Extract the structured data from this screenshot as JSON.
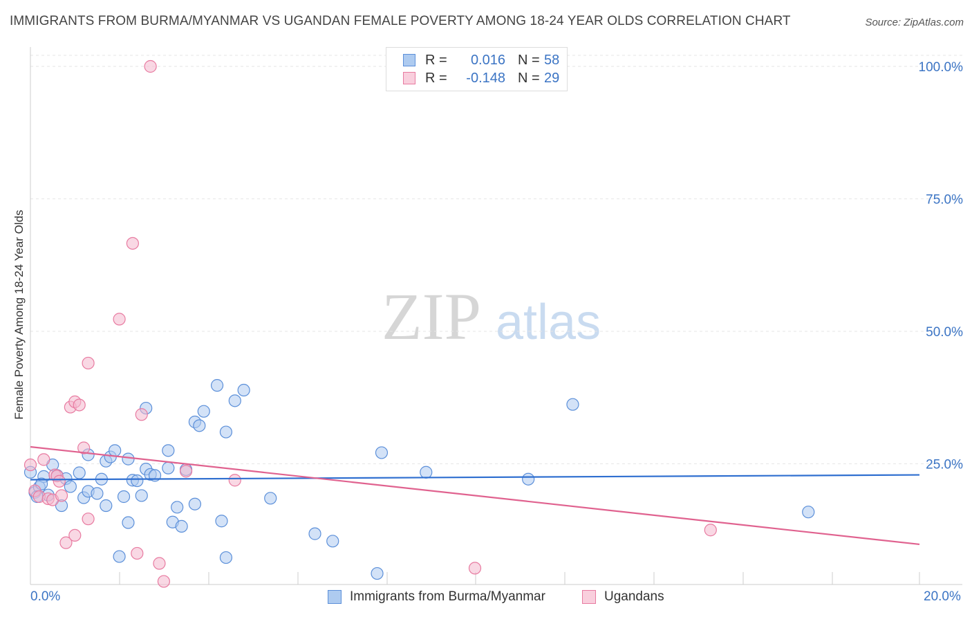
{
  "header": {
    "title": "IMMIGRANTS FROM BURMA/MYANMAR VS UGANDAN FEMALE POVERTY AMONG 18-24 YEAR OLDS CORRELATION CHART",
    "source": "Source: ZipAtlas.com"
  },
  "watermark": {
    "zip": "ZIP",
    "atlas": "atlas"
  },
  "legend": {
    "rows": [
      {
        "r_label": "R =",
        "r_value": "0.016",
        "n_label": "N =",
        "n_value": "58",
        "color": "#5b8fd9"
      },
      {
        "r_label": "R =",
        "r_value": "-0.148",
        "n_label": "N =",
        "n_value": "29",
        "color": "#e87aa0"
      }
    ]
  },
  "chart_data": {
    "type": "scatter",
    "title": "IMMIGRANTS FROM BURMA/MYANMAR VS UGANDAN FEMALE POVERTY AMONG 18-24 YEAR OLDS CORRELATION CHART",
    "xlabel": "",
    "ylabel": "Female Poverty Among 18-24 Year Olds",
    "xlim": [
      0,
      20
    ],
    "ylim": [
      0,
      100
    ],
    "x_tick_labels": {
      "min": "0.0%",
      "max": "20.0%"
    },
    "y_ticks": [
      {
        "value": 100,
        "label": "100.0%"
      },
      {
        "value": 75,
        "label": "75.0%"
      },
      {
        "value": 50,
        "label": "50.0%"
      },
      {
        "value": 25,
        "label": "25.0%"
      }
    ],
    "grid": true,
    "series": [
      {
        "name": "Immigrants from Burma/Myanmar",
        "color": "#5b8fd9",
        "fill": "#aecbf0",
        "trend": {
          "x0": 0,
          "y0": 22.0,
          "x1": 20,
          "y1": 22.9
        },
        "points": [
          [
            0.1,
            19.6
          ],
          [
            0.2,
            20.6
          ],
          [
            0.3,
            22.6
          ],
          [
            0.5,
            24.8
          ],
          [
            0.6,
            22.8
          ],
          [
            0.4,
            19.1
          ],
          [
            0.7,
            17.1
          ],
          [
            0.8,
            22.2
          ],
          [
            0.9,
            20.7
          ],
          [
            1.1,
            23.3
          ],
          [
            1.2,
            18.6
          ],
          [
            1.3,
            19.8
          ],
          [
            1.3,
            26.7
          ],
          [
            1.5,
            19.4
          ],
          [
            1.6,
            22.1
          ],
          [
            1.7,
            25.5
          ],
          [
            1.7,
            17.1
          ],
          [
            1.8,
            26.3
          ],
          [
            1.9,
            27.5
          ],
          [
            2.0,
            7.5
          ],
          [
            2.1,
            18.8
          ],
          [
            2.2,
            25.9
          ],
          [
            2.2,
            13.9
          ],
          [
            2.3,
            21.9
          ],
          [
            2.4,
            21.8
          ],
          [
            2.5,
            19.0
          ],
          [
            2.6,
            35.5
          ],
          [
            2.6,
            24.0
          ],
          [
            2.7,
            23.0
          ],
          [
            2.8,
            22.8
          ],
          [
            3.1,
            24.2
          ],
          [
            3.1,
            27.5
          ],
          [
            3.3,
            16.8
          ],
          [
            3.2,
            14.0
          ],
          [
            3.4,
            13.2
          ],
          [
            3.5,
            23.9
          ],
          [
            3.7,
            17.4
          ],
          [
            3.7,
            32.9
          ],
          [
            3.8,
            32.2
          ],
          [
            3.9,
            34.9
          ],
          [
            4.2,
            39.8
          ],
          [
            4.3,
            14.2
          ],
          [
            4.4,
            31.0
          ],
          [
            4.4,
            7.3
          ],
          [
            4.6,
            36.9
          ],
          [
            4.8,
            38.9
          ],
          [
            5.4,
            18.5
          ],
          [
            6.4,
            11.8
          ],
          [
            6.8,
            10.4
          ],
          [
            7.8,
            4.3
          ],
          [
            7.9,
            27.1
          ],
          [
            8.9,
            23.4
          ],
          [
            11.2,
            22.1
          ],
          [
            12.2,
            36.2
          ],
          [
            17.5,
            15.9
          ],
          [
            0.0,
            23.4
          ],
          [
            0.15,
            18.8
          ],
          [
            0.25,
            21.2
          ]
        ]
      },
      {
        "name": "Ugandans",
        "color": "#e87aa0",
        "fill": "#f4b8cd",
        "trend": {
          "x0": 0,
          "y0": 28.2,
          "x1": 20,
          "y1": 9.8
        },
        "points": [
          [
            0.0,
            24.8
          ],
          [
            0.1,
            19.9
          ],
          [
            0.2,
            18.8
          ],
          [
            0.3,
            25.8
          ],
          [
            0.4,
            18.4
          ],
          [
            0.5,
            18.2
          ],
          [
            0.55,
            22.9
          ],
          [
            0.6,
            22.7
          ],
          [
            0.65,
            21.7
          ],
          [
            0.7,
            19.0
          ],
          [
            0.8,
            10.1
          ],
          [
            0.9,
            35.7
          ],
          [
            1.0,
            36.7
          ],
          [
            1.0,
            11.5
          ],
          [
            1.1,
            36.1
          ],
          [
            1.2,
            28.0
          ],
          [
            1.3,
            44.0
          ],
          [
            1.3,
            14.6
          ],
          [
            2.0,
            52.3
          ],
          [
            2.3,
            66.6
          ],
          [
            2.4,
            8.1
          ],
          [
            2.5,
            34.3
          ],
          [
            2.7,
            100.0
          ],
          [
            2.9,
            6.2
          ],
          [
            3.0,
            2.8
          ],
          [
            3.5,
            23.6
          ],
          [
            4.6,
            21.9
          ],
          [
            10.0,
            5.3
          ],
          [
            15.3,
            12.5
          ]
        ]
      }
    ]
  },
  "bottom_legend": [
    {
      "label": "Immigrants from Burma/Myanmar",
      "color": "#5b8fd9",
      "fill": "#aecbf0"
    },
    {
      "label": "Ugandans",
      "color": "#e87aa0",
      "fill": "#f4b8cd"
    }
  ]
}
